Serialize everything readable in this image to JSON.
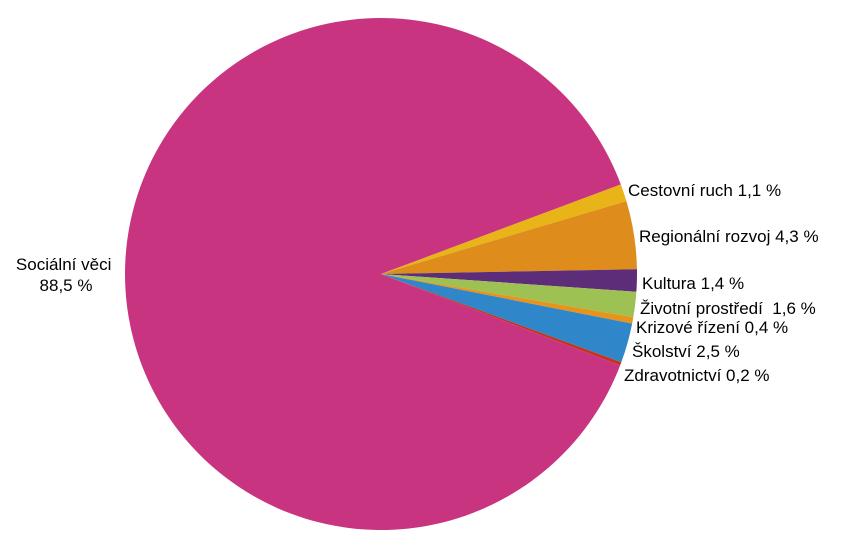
{
  "chart_data": {
    "type": "pie",
    "start_angle_deg": -20.5,
    "direction": "clockwise",
    "slices": [
      {
        "name": "Cestovní ruch",
        "value_label": "1,1 %",
        "value": 1.1,
        "color": "#e8b417"
      },
      {
        "name": "Regionální rozvoj",
        "value_label": "4,3 %",
        "value": 4.3,
        "color": "#de8d1c"
      },
      {
        "name": "Kultura",
        "value_label": "1,4 %",
        "value": 1.4,
        "color": "#5e2d79"
      },
      {
        "name": "Životní prostředí ",
        "value_label": "1,6 %",
        "value": 1.6,
        "color": "#9ec154"
      },
      {
        "name": "Krizové řízení",
        "value_label": "0,4 %",
        "value": 0.4,
        "color": "#e8931a"
      },
      {
        "name": "Školství",
        "value_label": "2,5 %",
        "value": 2.5,
        "color": "#2f86c9"
      },
      {
        "name": "Zdravotnictví",
        "value_label": "0,2 %",
        "value": 0.2,
        "color": "#c5321e"
      },
      {
        "name": "Sociální věci",
        "value_label": "88,5 %",
        "value": 88.5,
        "color": "#c8347f"
      }
    ]
  }
}
